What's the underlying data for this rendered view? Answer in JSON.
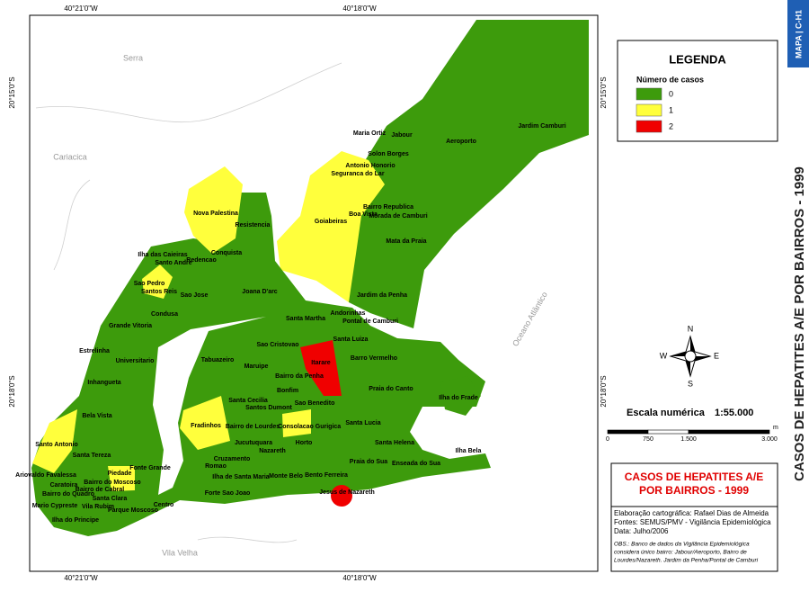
{
  "side_title": "CASOS DE HEPATITES A/E POR BAIRROS - 1999",
  "tab": "MAPA | C-H1",
  "coordinates": {
    "top": [
      "40°21'0\"W",
      "40°18'0\"W"
    ],
    "bottom": [
      "40°21'0\"W",
      "40°18'0\"W"
    ],
    "left": [
      "20°15'0\"S",
      "20°18'0\"S"
    ],
    "right": [
      "20°15'0\"S",
      "20°18'0\"S"
    ]
  },
  "places": [
    "Serra",
    "Cariacica",
    "Vila Velha",
    "Oceano Atlântico"
  ],
  "neighborhoods": [
    "Maria Ortiz",
    "Jabour",
    "Aeroporto",
    "Jardim Camburi",
    "Solon Borges",
    "Antonio Honorio",
    "Seguranca do Lar",
    "Bairro Republica",
    "Morada de Camburi",
    "Boa Vista",
    "Goiabeiras",
    "Mata da Praia",
    "Nova Palestina",
    "Resistencia",
    "Conquista",
    "Ilha das Caieiras",
    "Santo Andre",
    "Redencao",
    "Sao Pedro",
    "Santos Reis",
    "Sao Jose",
    "Joana D'arc",
    "Jardim da Penha",
    "Condusa",
    "Andorinhas",
    "Pontal de Camburi",
    "Santa Martha",
    "Grande Vitoria",
    "Santa Luiza",
    "Sao Cristovao",
    "Estrelinha",
    "Tabuazeiro",
    "Universitario",
    "Maruipe",
    "Itarare",
    "Barro Vermelho",
    "Bairro da Penha",
    "Inhangueta",
    "Praia do Canto",
    "Bonfim",
    "Ilha do Frade",
    "Santa Cecilia",
    "Sao Benedito",
    "Santos Dumont",
    "Bela Vista",
    "Fradinhos",
    "Bairro de Lourdes",
    "Consolacao",
    "Gurigica",
    "Santa Lucia",
    "Jucutuquara",
    "Horto",
    "Santa Helena",
    "Ilha Bela",
    "Santo Antonio",
    "Nazareth",
    "Santa Tereza",
    "Cruzamento",
    "Ariovaldo Favalessa",
    "Fonte Grande",
    "Romao",
    "Piedade",
    "Praia do Sua",
    "Enseada do Sua",
    "Caratoira",
    "Bairro do Moscoso",
    "Bairro de Cabral",
    "Ilha de Santa Maria",
    "Monte Belo",
    "Bento Ferreira",
    "Bairro do Quadro",
    "Jesus de Nazareth",
    "Forte Sao Joao",
    "Santa Clara",
    "Centro",
    "Mario Cypreste",
    "Vila Rubim",
    "Parque Moscoso",
    "Ilha do Principe"
  ],
  "legend": {
    "title": "LEGENDA",
    "subtitle": "Número de casos",
    "items": [
      {
        "label": "0",
        "color": "#3d9b0c"
      },
      {
        "label": "1",
        "color": "#ffff3c"
      },
      {
        "label": "2",
        "color": "#f00000"
      }
    ]
  },
  "compass": [
    "N",
    "S",
    "E",
    "W"
  ],
  "scale": {
    "label": "Escala numérica",
    "ratio": "1:55.000",
    "unit": "m",
    "ticks": [
      "0",
      "750",
      "1.500",
      "3.000"
    ]
  },
  "title_box": [
    "CASOS DE HEPATITES A/E",
    "POR BAIRROS - 1999"
  ],
  "credits": [
    "Elaboração cartográfica: Rafael Dias de Almeida",
    "Fontes: SEMUS/PMV - Vigilância Epidemiológica",
    "Data: Julho/2006"
  ],
  "notes": [
    "OBS.: Banco de dados da Vigilância Epidemiológica",
    "considera único bairro: Jabour/Aeroporto, Bairro de",
    "Lourdes/Nazareth. Jardim da Penha/Pontal de Camburi"
  ]
}
